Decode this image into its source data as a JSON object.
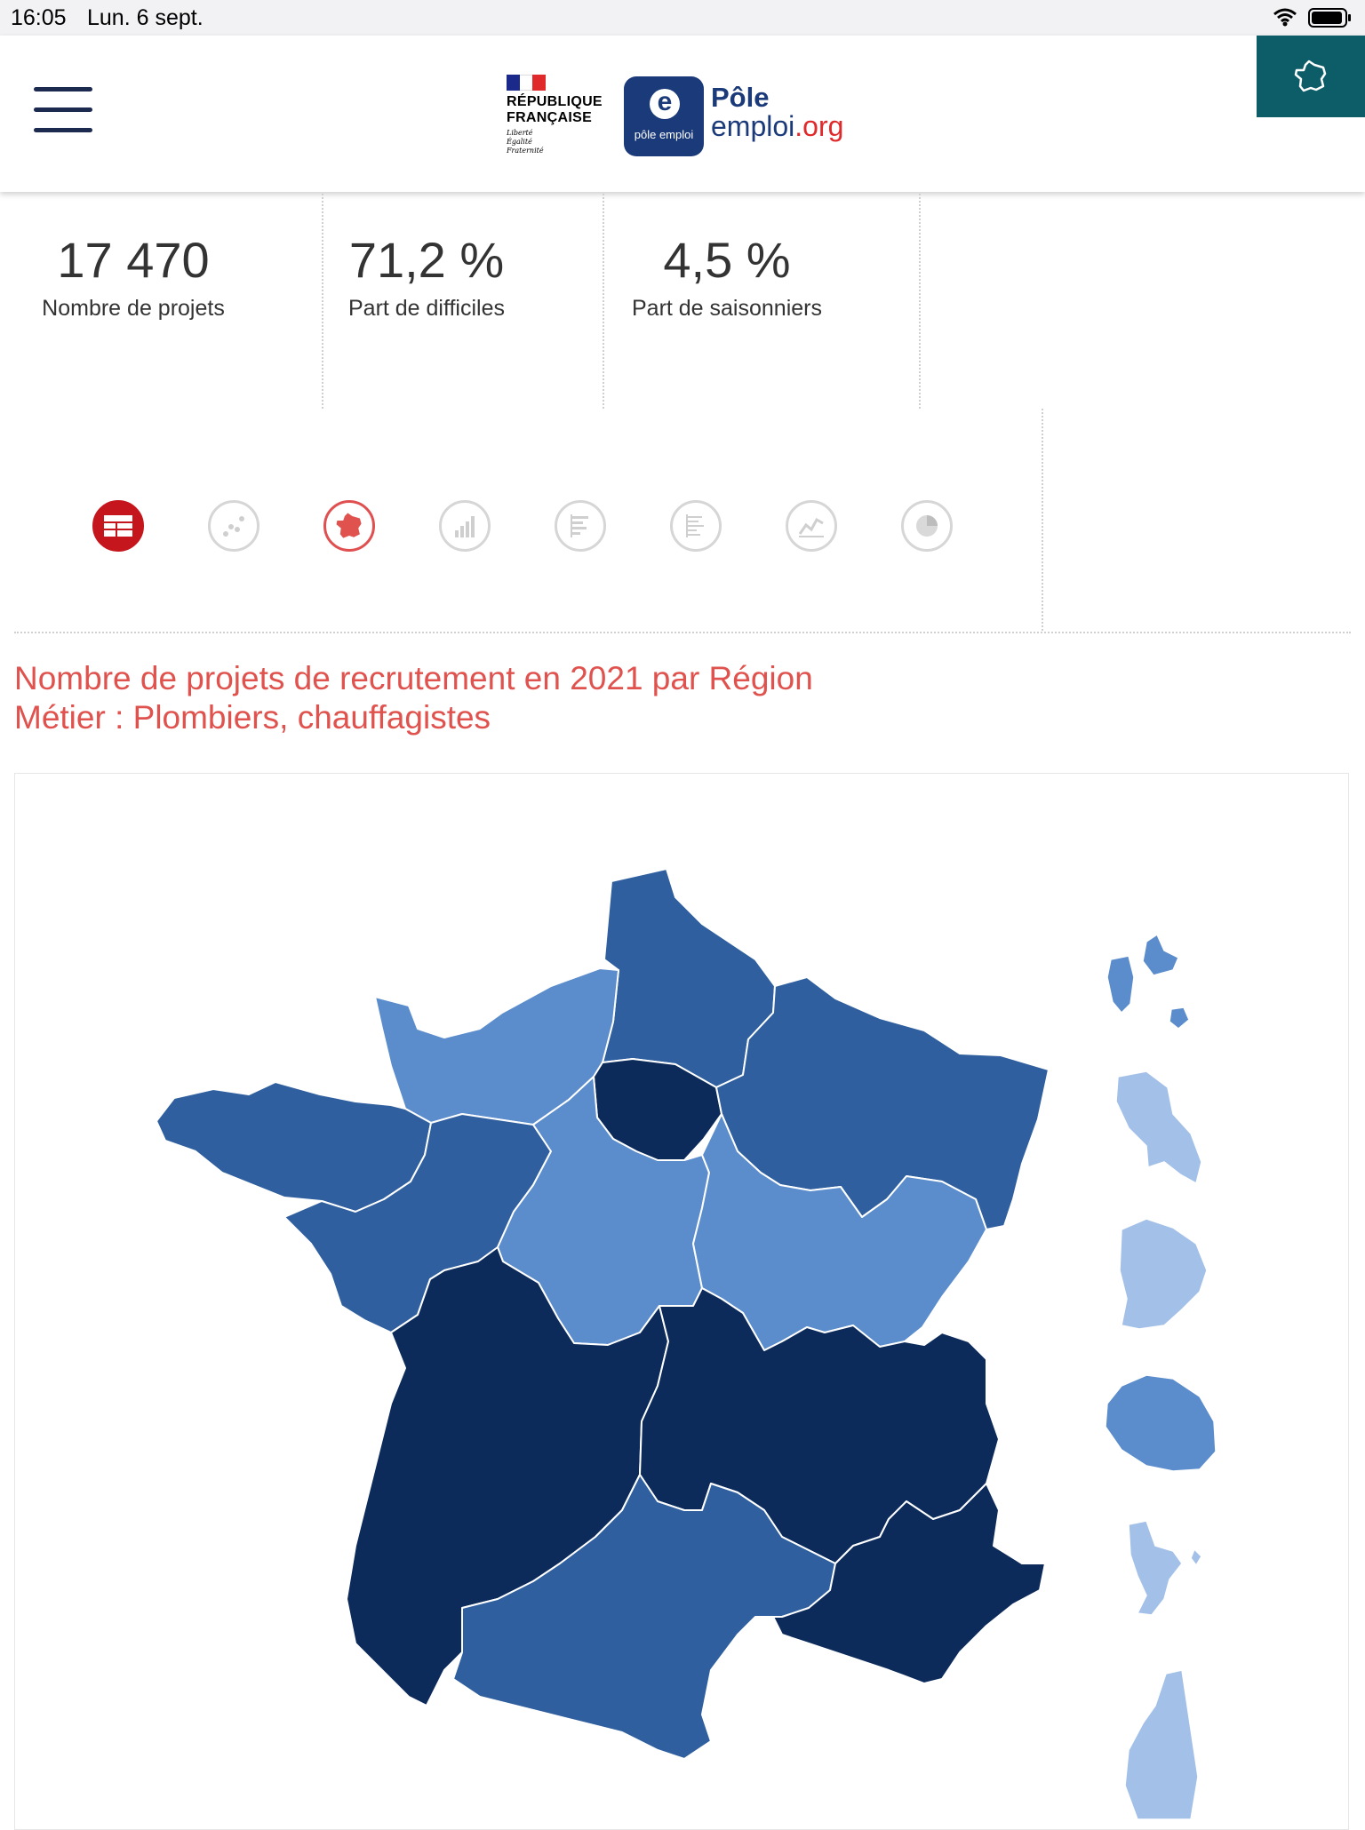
{
  "status_bar": {
    "time": "16:05",
    "date": "Lun. 6 sept."
  },
  "header": {
    "republique_line1": "RÉPUBLIQUE",
    "republique_line2": "FRANÇAISE",
    "motto_1": "Liberté",
    "motto_2": "Égalité",
    "motto_3": "Fraternité",
    "pole_emploi_small": "pôle emploi",
    "pole_word": "Pôle",
    "emploi_word": "emploi",
    "org_word": ".org"
  },
  "kpis": [
    {
      "value": "17 470",
      "label": "Nombre de projets"
    },
    {
      "value": "71,2 %",
      "label": "Part de difficiles"
    },
    {
      "value": "4,5 %",
      "label": "Part de saisonniers"
    }
  ],
  "view_icons": [
    "table-icon",
    "scatter-icon",
    "france-map-icon",
    "bar-chart-icon",
    "horizontal-bar-icon",
    "list-chart-icon",
    "line-chart-icon",
    "pie-chart-icon"
  ],
  "chart_title_line1": "Nombre de projets de recrutement en 2021 par Région",
  "chart_title_line2": "Métier : Plombiers, chauffagistes",
  "colors": {
    "darkest": "#0c2b5b",
    "dark": "#2f5f9e",
    "medium": "#5b8ccc",
    "light": "#a2c0e8",
    "accent_red": "#e0524d",
    "teal": "#0d5d69"
  }
}
